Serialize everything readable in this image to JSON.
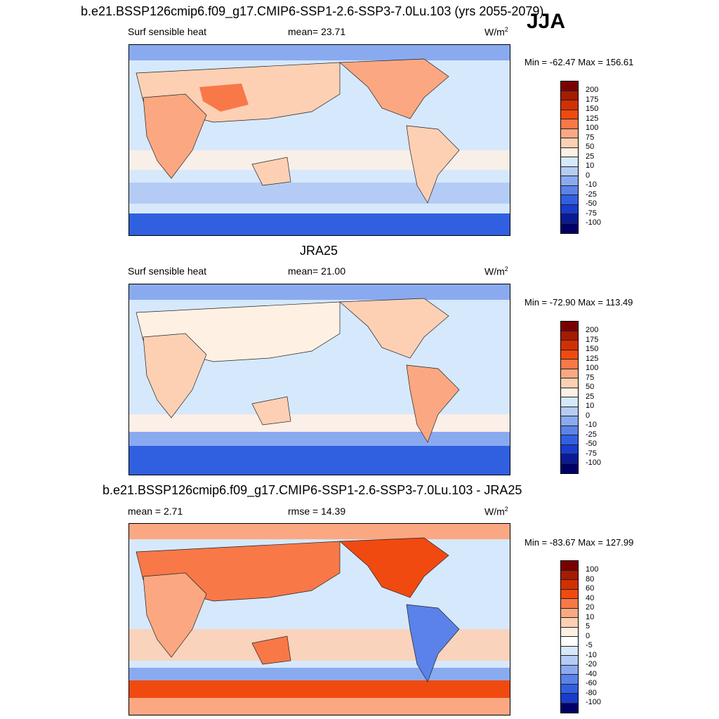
{
  "season": "JJA",
  "panels": [
    {
      "title": "b.e21.BSSP126cmip6.f09_g17.CMIP6-SSP1-2.6-SSP3-7.0Lu.103 (yrs 2055-2079)",
      "left_label": "Surf sensible heat",
      "center_label": "mean=  23.71",
      "units": "W/m",
      "units_sup": "2",
      "minmax": "Min = -62.47 Max = 156.61"
    },
    {
      "title": "JRA25",
      "left_label": "Surf sensible heat",
      "center_label": "mean=  21.00",
      "units": "W/m",
      "units_sup": "2",
      "minmax": "Min = -72.90 Max = 113.49"
    },
    {
      "title": "b.e21.BSSP126cmip6.f09_g17.CMIP6-SSP1-2.6-SSP3-7.0Lu.103 - JRA25",
      "left_label": "mean =   2.71",
      "center_label": "rmse =  14.39",
      "units": "W/m",
      "units_sup": "2",
      "minmax": "Min = -83.67 Max = 127.99"
    }
  ],
  "chart_data": [
    {
      "type": "heatmap",
      "title": "b.e21.BSSP126cmip6.f09_g17.CMIP6-SSP1-2.6-SSP3-7.0Lu.103 (yrs 2055-2079)",
      "variable": "Surf sensible heat",
      "units": "W/m2",
      "mean": 23.71,
      "min": -62.47,
      "max": 156.61,
      "colorbar_levels": [
        "200",
        "175",
        "150",
        "125",
        "100",
        "75",
        "50",
        "25",
        "10",
        "0",
        "-10",
        "-25",
        "-50",
        "-75",
        "-100"
      ],
      "colorbar_colors": [
        "#7a0000",
        "#a51c00",
        "#d33000",
        "#f04a10",
        "#f87848",
        "#fba882",
        "#fdd0b4",
        "#fff0e4",
        "#d6e8fb",
        "#b4ccf5",
        "#8aaaf0",
        "#5a82e8",
        "#3060e0",
        "#1a3ccc",
        "#0a1a96",
        "#000066"
      ]
    },
    {
      "type": "heatmap",
      "title": "JRA25",
      "variable": "Surf sensible heat",
      "units": "W/m2",
      "mean": 21.0,
      "min": -72.9,
      "max": 113.49,
      "colorbar_levels": [
        "200",
        "175",
        "150",
        "125",
        "100",
        "75",
        "50",
        "25",
        "10",
        "0",
        "-10",
        "-25",
        "-50",
        "-75",
        "-100"
      ],
      "colorbar_colors": [
        "#7a0000",
        "#a51c00",
        "#d33000",
        "#f04a10",
        "#f87848",
        "#fba882",
        "#fdd0b4",
        "#fff0e4",
        "#d6e8fb",
        "#b4ccf5",
        "#8aaaf0",
        "#5a82e8",
        "#3060e0",
        "#1a3ccc",
        "#0a1a96",
        "#000066"
      ]
    },
    {
      "type": "heatmap",
      "title": "b.e21.BSSP126cmip6.f09_g17.CMIP6-SSP1-2.6-SSP3-7.0Lu.103 - JRA25",
      "variable": "difference",
      "units": "W/m2",
      "mean": 2.71,
      "rmse": 14.39,
      "min": -83.67,
      "max": 127.99,
      "colorbar_levels": [
        "100",
        "80",
        "60",
        "40",
        "20",
        "10",
        "5",
        "0",
        "-5",
        "-10",
        "-20",
        "-40",
        "-60",
        "-80",
        "-100"
      ],
      "colorbar_colors": [
        "#7a0000",
        "#a51c00",
        "#d33000",
        "#f04a10",
        "#f87848",
        "#fba882",
        "#fdd0b4",
        "#fff0e4",
        "#ffffff",
        "#d6e8fb",
        "#b4ccf5",
        "#8aaaf0",
        "#5a82e8",
        "#3060e0",
        "#1a3ccc",
        "#000066"
      ]
    }
  ]
}
